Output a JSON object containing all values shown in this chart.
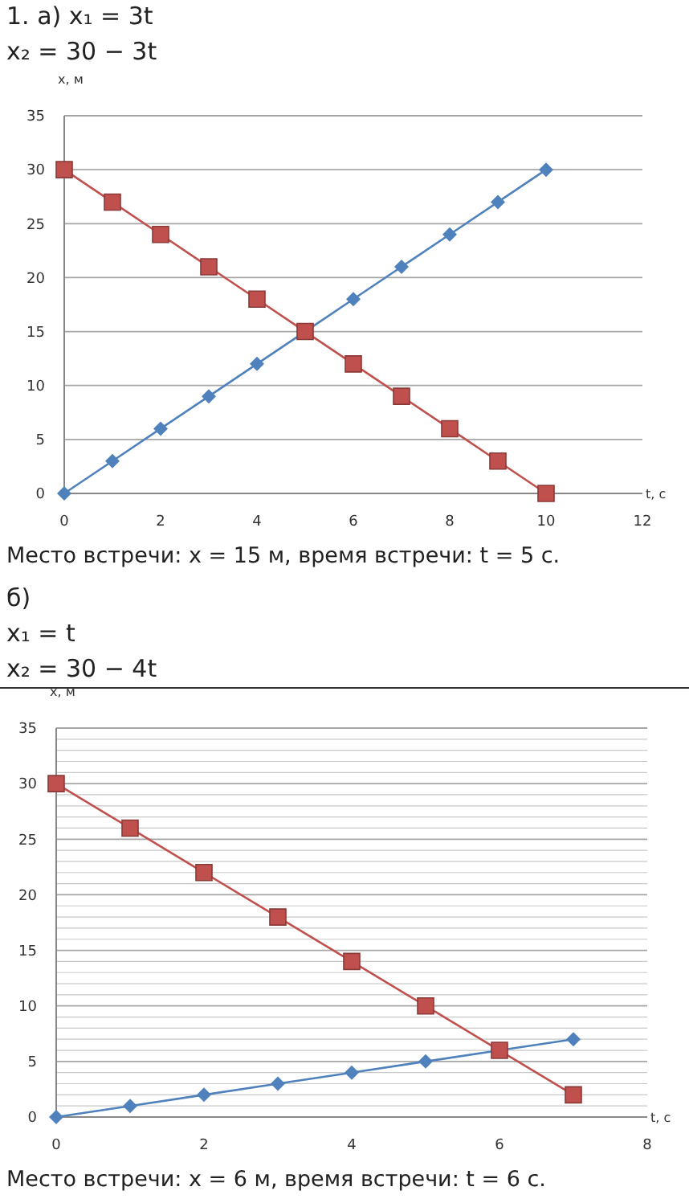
{
  "chart_data": [
    {
      "type": "line",
      "title": "1. а) x₁ = 3t",
      "subtitle": "x₂ = 30 − 3t",
      "xlabel": "t, с",
      "ylabel": "x, м",
      "annotations": [
        "Место встречи: x = 15 м, время встречи: t = 5 с."
      ],
      "x": [
        0,
        1,
        2,
        3,
        4,
        5,
        6,
        7,
        8,
        9,
        10
      ],
      "xlim": [
        0,
        12
      ],
      "xticks": [
        0,
        2,
        4,
        6,
        8,
        10,
        12
      ],
      "ylim": [
        0,
        35
      ],
      "yticks": [
        0,
        5,
        10,
        15,
        20,
        25,
        30,
        35
      ],
      "grid": "y",
      "series": [
        {
          "color": "#4f81bd",
          "marker": "diamond",
          "values": [
            0,
            3,
            6,
            9,
            12,
            15,
            18,
            21,
            24,
            27,
            30
          ]
        },
        {
          "color": "#c0504d",
          "marker": "square",
          "values": [
            30,
            27,
            24,
            21,
            18,
            15,
            12,
            9,
            6,
            3,
            0
          ]
        }
      ]
    },
    {
      "type": "line",
      "title": "б)",
      "subtitle": "x₁ = t\nx₂ = 30 − 4t",
      "xlabel": "t, с",
      "ylabel": "x, м",
      "annotations": [
        "Место встречи: x = 6 м, время встречи: t = 6 с."
      ],
      "x": [
        0,
        1,
        2,
        3,
        4,
        5,
        6,
        7
      ],
      "xlim": [
        0,
        8
      ],
      "xticks": [
        0,
        2,
        4,
        6,
        8
      ],
      "ylim": [
        0,
        35
      ],
      "grid": "y",
      "yticks": [
        0,
        {
          "value": 1,
          "label": null
        },
        {
          "value": 2,
          "label": null
        },
        {
          "value": 3,
          "label": null
        },
        {
          "value": 4,
          "label": null
        },
        5,
        {
          "value": 6,
          "label": null
        },
        {
          "value": 7,
          "label": null
        },
        {
          "value": 8,
          "label": null
        },
        {
          "value": 9,
          "label": null
        },
        10,
        {
          "value": 11,
          "label": null
        },
        {
          "value": 12,
          "label": null
        },
        {
          "value": 13,
          "label": null
        },
        {
          "value": 14,
          "label": null
        },
        15,
        {
          "value": 16,
          "label": null
        },
        {
          "value": 17,
          "label": null
        },
        {
          "value": 18,
          "label": null
        },
        {
          "value": 19,
          "label": null
        },
        20,
        {
          "value": 21,
          "label": null
        },
        {
          "value": 22,
          "label": null
        },
        {
          "value": 23,
          "label": null
        },
        {
          "value": 24,
          "label": null
        },
        25,
        {
          "value": 26,
          "label": null
        },
        {
          "value": 27,
          "label": null
        },
        {
          "value": 28,
          "label": null
        },
        {
          "value": 29,
          "label": null
        },
        30,
        {
          "value": 31,
          "label": null
        },
        {
          "value": 32,
          "label": null
        },
        {
          "value": 33,
          "label": null
        },
        {
          "value": 34,
          "label": null
        },
        35
      ],
      "series": [
        {
          "color": "#4f81bd",
          "marker": "diamond",
          "values": [
            0,
            1,
            2,
            3,
            4,
            5,
            6,
            7
          ]
        },
        {
          "color": "#c0504d",
          "marker": "square",
          "values": [
            30,
            26,
            22,
            18,
            14,
            10,
            6,
            2
          ]
        }
      ]
    }
  ]
}
